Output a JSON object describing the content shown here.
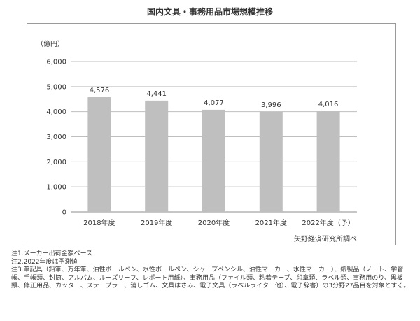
{
  "chart_data": {
    "type": "bar",
    "title": "国内文具・事務用品市場規模推移",
    "unit_label": "（億円）",
    "categories": [
      "2018年度",
      "2019年度",
      "2020年度",
      "2021年度",
      "2022年度（予）"
    ],
    "values": [
      4576,
      4441,
      4077,
      3996,
      4016
    ],
    "value_labels": [
      "4,576",
      "4,441",
      "4,077",
      "3,996",
      "4,016"
    ],
    "ylim": [
      0,
      6000
    ],
    "yticks": [
      0,
      1000,
      2000,
      3000,
      4000,
      5000,
      6000
    ],
    "ytick_labels": [
      "0",
      "1,000",
      "2,000",
      "3,000",
      "4,000",
      "5,000",
      "6,000"
    ],
    "grid": true,
    "bar_color": "#bfbfbf",
    "source": "矢野経済研究所調べ"
  },
  "notes": [
    "注1.メーカー出荷金額ベース",
    "注2.2022年度は予測値",
    "注3.筆記具（鉛筆、万年筆、油性ボールペン、水性ボールペン、シャープペンシル、油性マーカー、水性マーカー）、紙製品（ノート、学習帳、手帳類、封筒、アルバム、ルーズリーフ、レポート用紙）、事務用品（ファイル類、粘着テープ、印章類、ラベル類、事務用のり、黒板類、修正用品、カッター、ステープラー、消しゴム、文具はさみ、電子文具（ラベルライター他）、電子辞書）の3分野27品目を対象とする。"
  ]
}
